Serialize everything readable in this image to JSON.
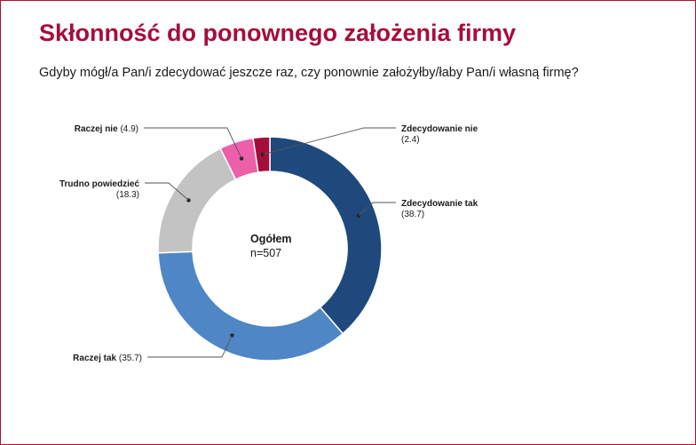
{
  "chart_data": {
    "type": "pie",
    "title": "Skłonność do ponownego założenia firmy",
    "subtitle": "Gdyby mógł/a Pan/i zdecydować jeszcze raz, czy ponownie założyłby/łaby Pan/i własną firmę?",
    "center_label": "Ogółem",
    "center_sublabel": "n=507",
    "slices": [
      {
        "name": "Zdecydowanie tak",
        "value": 38.7,
        "value_text": "(38.7)",
        "color": "#1f497d"
      },
      {
        "name": "Raczej tak",
        "value": 35.7,
        "value_text": "(35.7)",
        "color": "#4f86c6"
      },
      {
        "name": "Trudno powiedzieć",
        "value": 18.3,
        "value_text": "(18.3)",
        "color": "#c3c3c3"
      },
      {
        "name": "Raczej nie",
        "value": 4.9,
        "value_text": "(4.9)",
        "color": "#ec5fa9"
      },
      {
        "name": "Zdecydowanie nie",
        "value": 2.4,
        "value_text": "(2.4)",
        "color": "#a50e3a"
      }
    ]
  }
}
